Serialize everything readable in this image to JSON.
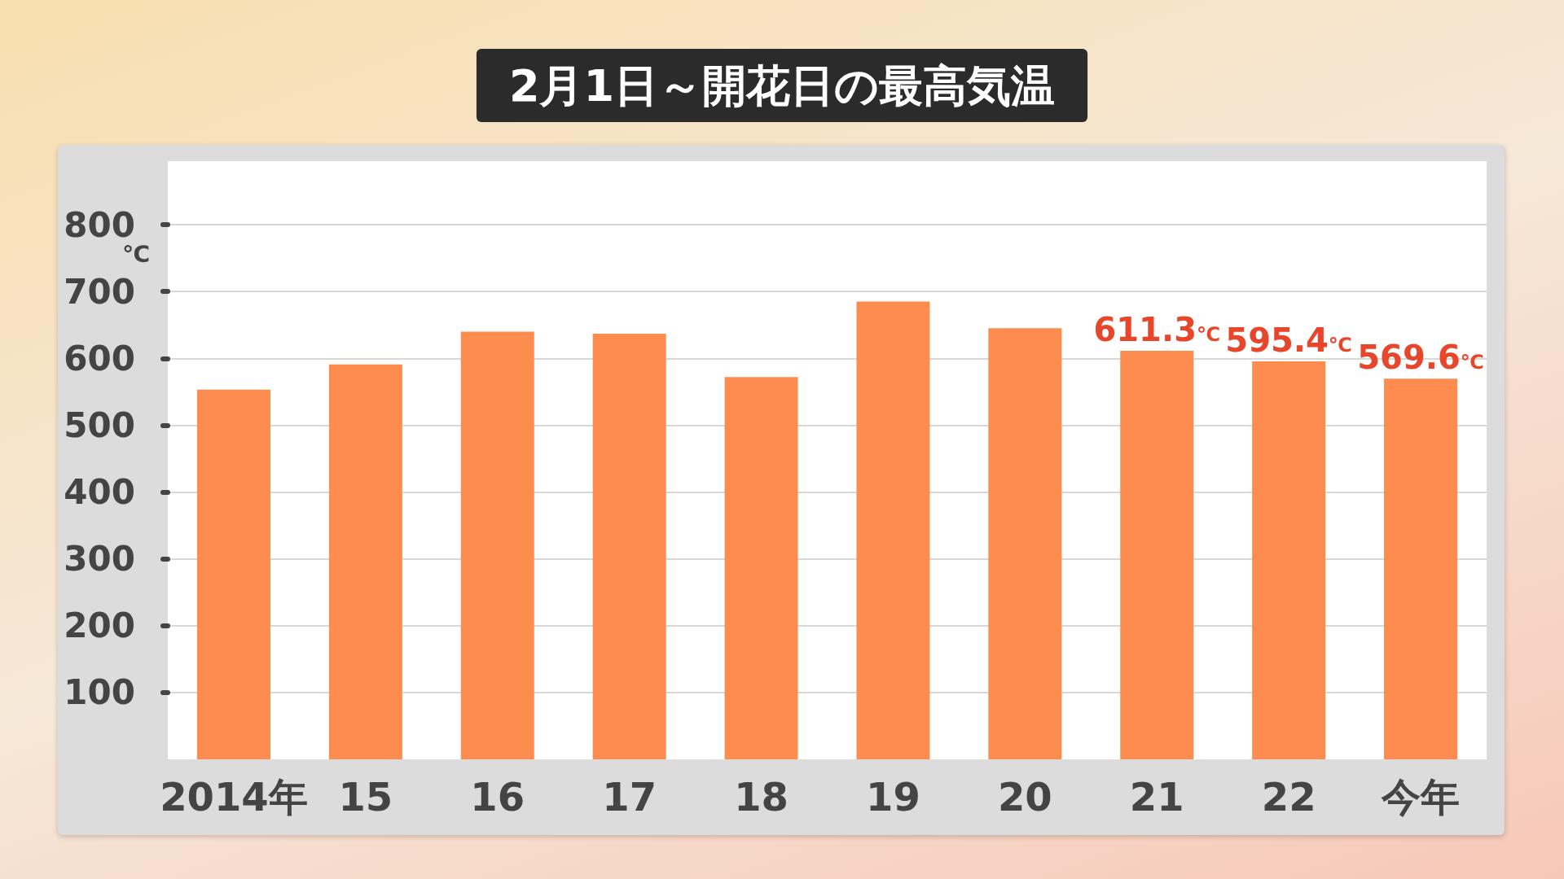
{
  "chart_data": {
    "type": "bar",
    "title": "2月1日～開花日の最高気温",
    "ylabel": "℃",
    "categories": [
      "2014年",
      "15",
      "16",
      "17",
      "18",
      "19",
      "20",
      "21",
      "22",
      "今年"
    ],
    "values": [
      553,
      591,
      640,
      637,
      572,
      685,
      645,
      611.3,
      595.4,
      569.6
    ],
    "value_labels": [
      null,
      null,
      null,
      null,
      null,
      null,
      null,
      "611.3℃",
      "595.4℃",
      "569.6℃"
    ],
    "color": "#ff8c4f",
    "ylim": [
      0,
      895
    ],
    "yticks": [
      100,
      200,
      300,
      400,
      500,
      600,
      700,
      800
    ],
    "grid": "y"
  }
}
